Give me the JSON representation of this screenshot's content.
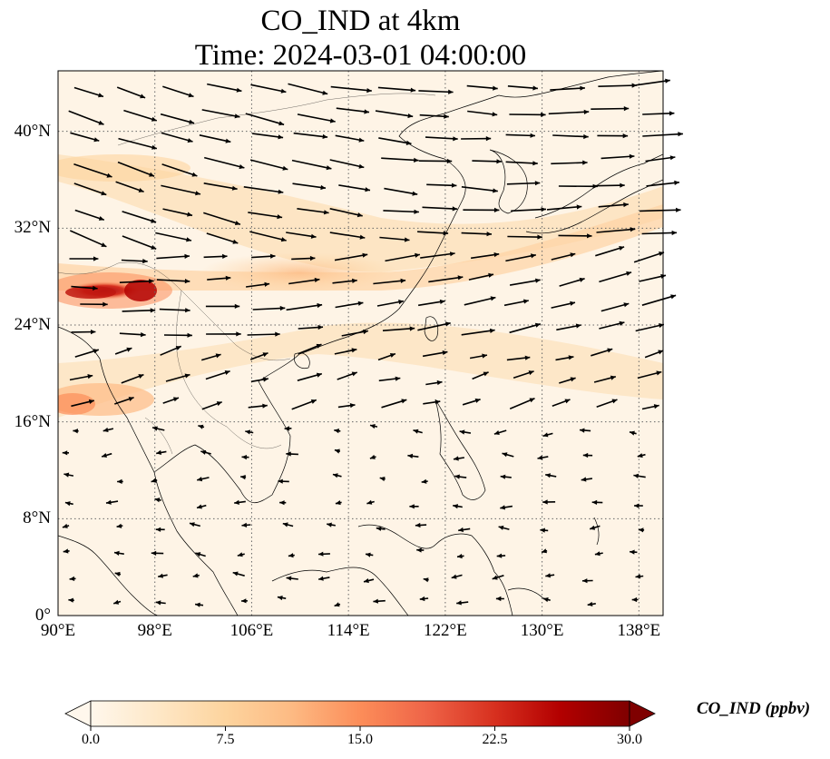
{
  "title": {
    "line1": "CO_IND at 4km",
    "line2": "Time: 2024-03-01 04:00:00"
  },
  "map": {
    "variable": "CO_IND",
    "height": "4km",
    "lon_range": [
      90,
      140
    ],
    "lat_range": [
      0,
      45
    ],
    "lat_ticks": [
      {
        "value": 40,
        "label": "40°N"
      },
      {
        "value": 32,
        "label": "32°N"
      },
      {
        "value": 24,
        "label": "24°N"
      },
      {
        "value": 16,
        "label": "16°N"
      },
      {
        "value": 8,
        "label": "8°N"
      },
      {
        "value": 0,
        "label": "0°"
      }
    ],
    "lon_ticks": [
      {
        "value": 90,
        "label": "90°E"
      },
      {
        "value": 98,
        "label": "98°E"
      },
      {
        "value": 106,
        "label": "106°E"
      },
      {
        "value": 114,
        "label": "114°E"
      },
      {
        "value": 122,
        "label": "122°E"
      },
      {
        "value": 130,
        "label": "130°E"
      },
      {
        "value": 138,
        "label": "138°E"
      }
    ],
    "gridlines": "dotted",
    "wind_vectors": true,
    "colors": {
      "background": "#fff5e8",
      "low": "#ffffff",
      "high": "#7f0000"
    }
  },
  "colorbar": {
    "label": "CO_IND (ppbv)",
    "min": 0.0,
    "max": 30.0,
    "extend": "both",
    "ticks": [
      "0.0",
      "7.5",
      "15.0",
      "22.5",
      "30.0"
    ],
    "colormap": [
      "#fff7ec",
      "#fee8c8",
      "#fdd49e",
      "#fdbb84",
      "#fc8d59",
      "#ef6548",
      "#d7301f",
      "#b30000",
      "#7f0000"
    ]
  }
}
